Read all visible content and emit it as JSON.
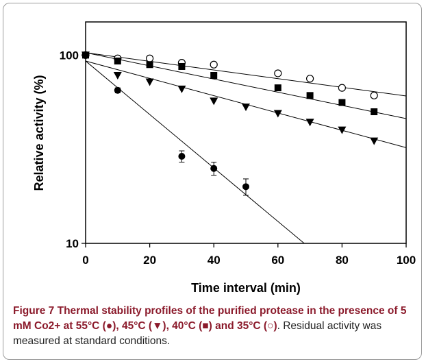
{
  "chart_data": {
    "type": "scatter",
    "xlabel": "Time interval (min)",
    "ylabel": "Relative activity (%)",
    "xlim": [
      0,
      100
    ],
    "ylim": [
      10,
      150
    ],
    "y_scale": "log",
    "x_ticks": [
      "0",
      "20",
      "40",
      "60",
      "80",
      "100"
    ],
    "y_ticks": [
      "10",
      "100"
    ],
    "grid": false,
    "series": [
      {
        "marker": "open-circle",
        "x": [
          0,
          10,
          20,
          30,
          40,
          60,
          70,
          80,
          90
        ],
        "y": [
          100,
          96,
          96,
          91,
          89,
          80,
          75,
          67,
          61
        ],
        "fit": {
          "y0": 103,
          "slope_log10": -0.0023
        }
      },
      {
        "marker": "filled-square",
        "x": [
          0,
          10,
          20,
          30,
          40,
          60,
          70,
          80,
          90
        ],
        "y": [
          100,
          93,
          89,
          87,
          78,
          67,
          61,
          56,
          50
        ],
        "fit": {
          "y0": 103,
          "slope_log10": -0.0035
        }
      },
      {
        "marker": "filled-triangle-down",
        "x": [
          0,
          10,
          20,
          30,
          40,
          50,
          60,
          70,
          80,
          90
        ],
        "y": [
          100,
          78,
          72,
          66,
          57,
          53,
          49,
          44,
          40,
          35
        ],
        "fit": {
          "y0": 93,
          "slope_log10": -0.0046
        }
      },
      {
        "marker": "filled-circle",
        "x": [
          0,
          10,
          30,
          40,
          50
        ],
        "y": [
          100,
          65,
          29,
          25,
          20
        ],
        "fit": {
          "y0": 93,
          "slope_log10": -0.0142
        },
        "err": [
          0,
          2,
          2,
          2,
          2
        ]
      }
    ]
  },
  "caption": {
    "bold": "Figure 7 Thermal stability profiles of the purified protease in the presence of 5 mM Co2+ at 55°C (●), 45°C (▼), 40°C (■) and 35°C (○)",
    "rest": ". Residual activity was measured at standard conditions."
  }
}
